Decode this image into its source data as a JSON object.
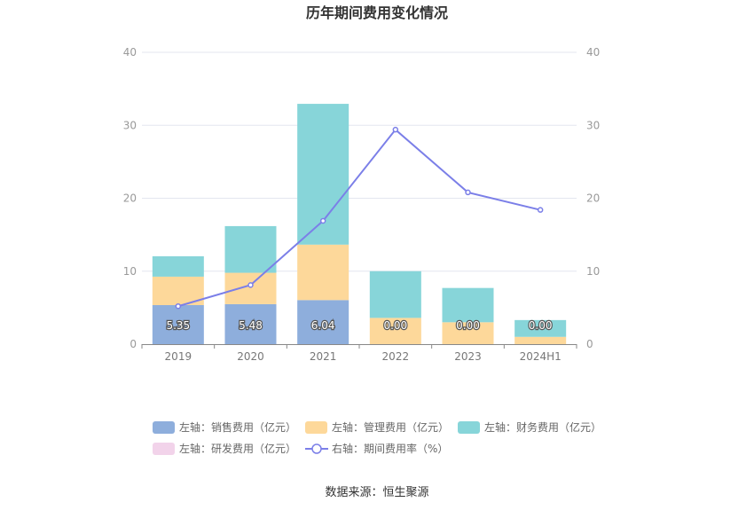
{
  "colors": {
    "sales": "#8eaedc",
    "mgmt": "#fdd89a",
    "finance": "#87d5d9",
    "rd": "#f2d3ea",
    "rate": "#7b7fe8",
    "grid": "#e3e6ef",
    "axis": "#888888"
  },
  "chart_data": {
    "type": "bar",
    "title": "历年期间费用变化情况",
    "categories": [
      "2019",
      "2020",
      "2021",
      "2022",
      "2023",
      "2024H1"
    ],
    "y_left": {
      "min": 0,
      "max": 40,
      "ticks": [
        0,
        10,
        20,
        30,
        40
      ]
    },
    "y_right": {
      "min": 0,
      "max": 40,
      "ticks": [
        0,
        10,
        20,
        30,
        40
      ]
    },
    "stacked": true,
    "series": [
      {
        "key": "sales",
        "name": "左轴：销售费用（亿元）",
        "axis": "left",
        "values": [
          5.35,
          5.48,
          6.04,
          0.0,
          0.0,
          0.0
        ],
        "labels": [
          "5.35",
          "5.48",
          "6.04",
          "0.00",
          "0.00",
          "0.00"
        ]
      },
      {
        "key": "mgmt",
        "name": "左轴：管理费用（亿元）",
        "axis": "left",
        "values": [
          3.9,
          4.3,
          7.6,
          3.6,
          3.0,
          1.0
        ]
      },
      {
        "key": "finance",
        "name": "左轴：财务费用（亿元）",
        "axis": "left",
        "values": [
          2.8,
          6.4,
          19.3,
          6.4,
          4.7,
          2.3
        ]
      },
      {
        "key": "rd",
        "name": "左轴：研发费用（亿元）",
        "axis": "left",
        "values": [
          0,
          0,
          0,
          0,
          0,
          0
        ]
      },
      {
        "key": "rate",
        "name": "右轴：期间费用率（%）",
        "axis": "right",
        "type": "line",
        "values": [
          5.2,
          8.1,
          16.9,
          29.4,
          20.8,
          18.4
        ]
      }
    ],
    "legend_position": "bottom",
    "grid": true
  },
  "footer": {
    "source": "数据来源：恒生聚源"
  }
}
